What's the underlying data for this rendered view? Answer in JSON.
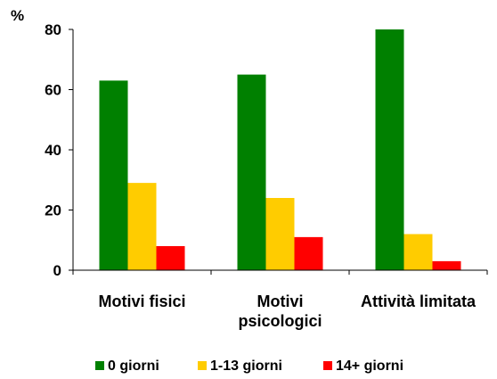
{
  "chart_data": {
    "type": "bar",
    "title": "",
    "xlabel": "",
    "ylabel": "%",
    "ylim": [
      0,
      80
    ],
    "yticks": [
      0,
      20,
      40,
      60,
      80
    ],
    "grid": false,
    "legend_position": "bottom",
    "categories": [
      [
        "Motivi fisici"
      ],
      [
        "Motivi",
        "psicologici"
      ],
      [
        "Attività limitata"
      ]
    ],
    "series": [
      {
        "name": "0 giorni",
        "color": "#008000",
        "values": [
          63,
          65,
          80
        ]
      },
      {
        "name": "1-13 giorni",
        "color": "#FFCC00",
        "values": [
          29,
          24,
          12
        ]
      },
      {
        "name": "14+ giorni",
        "color": "#FF0000",
        "values": [
          8,
          11,
          3
        ]
      }
    ]
  }
}
